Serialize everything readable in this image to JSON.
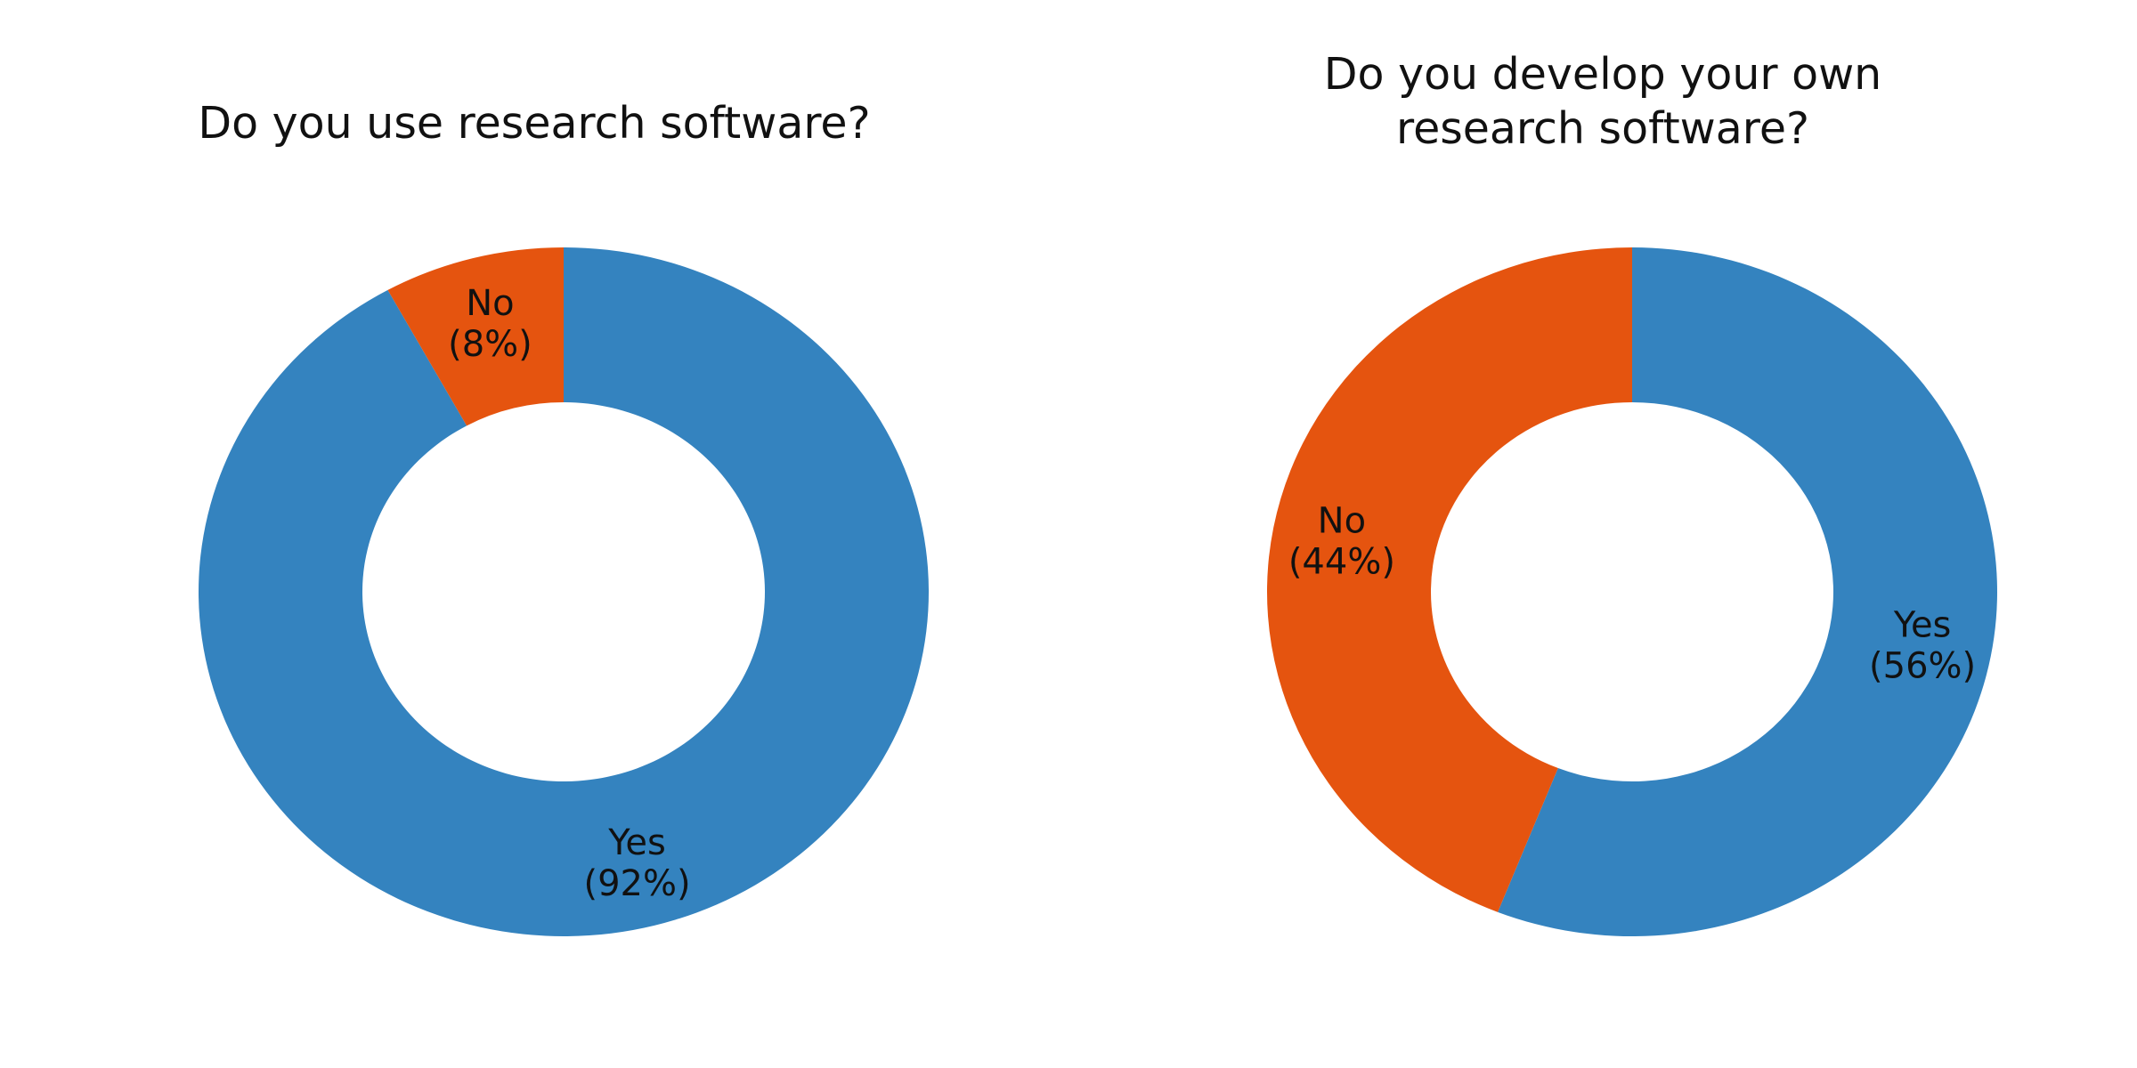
{
  "chart_data": [
    {
      "type": "pie",
      "donut": true,
      "title": "Do you use research software?",
      "title_lines": [
        "Do you use research software?"
      ],
      "slices": [
        {
          "label": "Yes",
          "value": 92,
          "pct_label": "(92%)",
          "color": "#3483bf"
        },
        {
          "label": "No",
          "value": 8,
          "pct_label": "(8%)",
          "color": "#e5540f"
        }
      ]
    },
    {
      "type": "pie",
      "donut": true,
      "title": "Do you develop your own research software?",
      "title_lines": [
        "Do you develop your own",
        "research software?"
      ],
      "slices": [
        {
          "label": "Yes",
          "value": 56,
          "pct_label": "(56%)",
          "color": "#3483bf"
        },
        {
          "label": "No",
          "value": 44,
          "pct_label": "(44%)",
          "color": "#e5540f"
        }
      ]
    }
  ]
}
